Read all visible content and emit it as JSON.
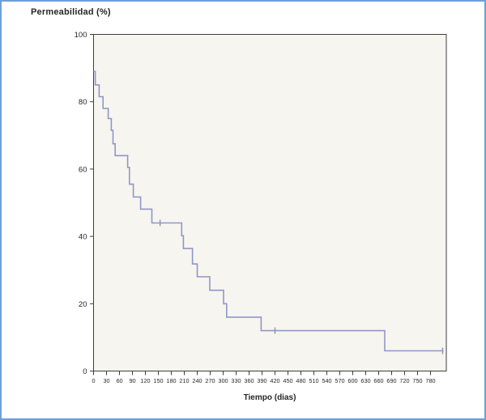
{
  "window": {
    "border_color": "#6da0d8",
    "background": "#ffffff"
  },
  "chart_data": {
    "type": "line",
    "subtype": "kaplan-meier-step",
    "title": "Permeabilidad (%)",
    "xlabel": "Tiempo (dias)",
    "ylabel": "",
    "xlim": [
      0,
      810
    ],
    "ylim": [
      0,
      100
    ],
    "x_ticks": [
      0,
      30,
      60,
      90,
      120,
      150,
      180,
      210,
      240,
      270,
      300,
      330,
      360,
      390,
      420,
      450,
      480,
      510,
      540,
      570,
      600,
      630,
      660,
      690,
      720,
      750,
      780
    ],
    "y_ticks": [
      0,
      20,
      40,
      60,
      80,
      100
    ],
    "grid": false,
    "legend": null,
    "plot_bg": "#f7f5f0",
    "frame_color": "#3d3d3d",
    "tick_text_color": "#262626",
    "series": [
      {
        "name": "Permeabilidad",
        "color": "#8f97c5",
        "start_level": 89,
        "step_points": [
          [
            0,
            89
          ],
          [
            4,
            85
          ],
          [
            13,
            81.5
          ],
          [
            22,
            78
          ],
          [
            34,
            75
          ],
          [
            41,
            71.5
          ],
          [
            45,
            67.5
          ],
          [
            50,
            64
          ],
          [
            79,
            60.5
          ],
          [
            83,
            55.5
          ],
          [
            92,
            51.7
          ],
          [
            109,
            48.1
          ],
          [
            135,
            44
          ],
          [
            204,
            40.2
          ],
          [
            208,
            36.4
          ],
          [
            229,
            31.8
          ],
          [
            240,
            28
          ],
          [
            269,
            24
          ],
          [
            301,
            20
          ],
          [
            308,
            16
          ],
          [
            388,
            12
          ],
          [
            674,
            6
          ]
        ],
        "end_time": 810,
        "censor_marks": [
          [
            154,
            44
          ],
          [
            420,
            12
          ],
          [
            808,
            6
          ]
        ]
      }
    ]
  }
}
